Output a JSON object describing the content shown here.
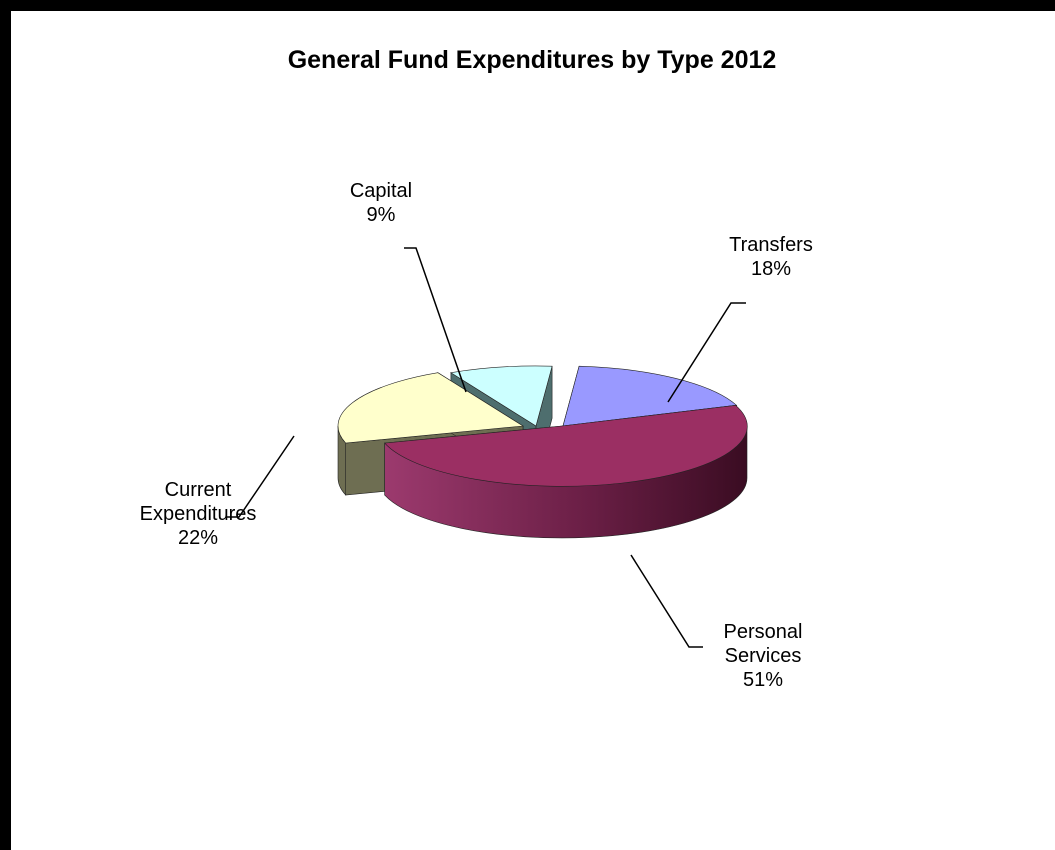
{
  "chart_data": {
    "type": "pie",
    "title": "General Fund Expenditures by Type 2012",
    "slices": [
      {
        "name": "Transfers",
        "label_lines": [
          "Transfers",
          "18%"
        ],
        "value": 18,
        "color": "#9999ff"
      },
      {
        "name": "Personal Services",
        "label_lines": [
          "Personal",
          "Services",
          "51%"
        ],
        "value": 51,
        "color": "#993366"
      },
      {
        "name": "Current Expenditures",
        "label_lines": [
          "Current",
          "Expenditures",
          "22%"
        ],
        "value": 22,
        "color": "#ffffcc"
      },
      {
        "name": "Capital",
        "label_lines": [
          "Capital",
          "9%"
        ],
        "value": 9,
        "color": "#ccffff"
      }
    ],
    "legend": "none",
    "style": "3d-exploded"
  }
}
